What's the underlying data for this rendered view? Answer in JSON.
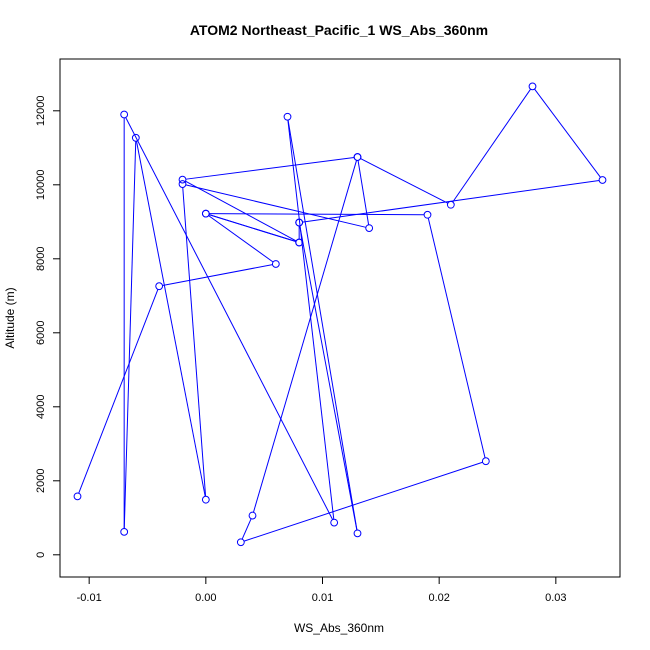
{
  "chart_data": {
    "type": "line",
    "title": "ATOM2 Northeast_Pacific_1 WS_Abs_360nm",
    "xlabel": "WS_Abs_360nm",
    "ylabel": "Altitude (m)",
    "xlim": [
      -0.0125,
      0.0355
    ],
    "ylim": [
      -600,
      13400
    ],
    "x_ticks": [
      -0.01,
      0.0,
      0.01,
      0.02,
      0.03
    ],
    "x_tick_labels": [
      "-0.01",
      "0.00",
      "0.01",
      "0.02",
      "0.03"
    ],
    "y_ticks": [
      0,
      2000,
      4000,
      6000,
      8000,
      10000,
      12000
    ],
    "y_tick_labels": [
      "0",
      "2000",
      "4000",
      "6000",
      "8000",
      "10000",
      "12000"
    ],
    "grid": false,
    "legend": "none",
    "series": [
      {
        "color": "#0000ff",
        "marker": "open-circle",
        "x": [
          -0.011,
          -0.004,
          0.006,
          0.0,
          0.008,
          -0.002,
          0.013,
          0.004,
          0.003,
          0.024,
          0.019,
          0.0,
          0.008,
          0.008,
          0.013,
          0.007,
          0.011,
          -0.007,
          -0.007,
          -0.006,
          0.0,
          -0.002,
          0.014,
          0.013,
          0.021,
          0.028,
          0.034,
          0.008
        ],
        "y": [
          1580,
          7260,
          7860,
          9220,
          8440,
          10140,
          10750,
          1060,
          340,
          2530,
          9190,
          9220,
          8440,
          8980,
          580,
          11840,
          870,
          11900,
          620,
          11270,
          1490,
          10020,
          8830,
          10750,
          9460,
          12660,
          10130,
          8980
        ]
      }
    ]
  }
}
